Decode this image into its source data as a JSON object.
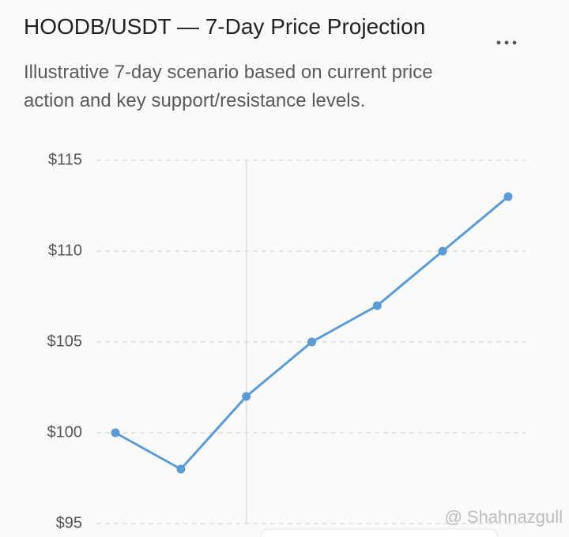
{
  "chart_data": {
    "type": "line",
    "title": "HOODB/USDT — 7-Day Price Projection",
    "subtitle": "Illustrative 7-day scenario based on current price action and key support/resistance levels.",
    "categories": [
      null,
      null,
      null,
      null,
      null,
      null,
      null
    ],
    "series": [
      {
        "name": null,
        "color": "#5b9bd5",
        "values": [
          100,
          98,
          102,
          105,
          107,
          110,
          113
        ]
      }
    ],
    "ylim": [
      95,
      115
    ],
    "yticks": [
      {
        "value": 95,
        "label": "$95"
      },
      {
        "value": 100,
        "label": "$100"
      },
      {
        "value": 105,
        "label": "$105"
      },
      {
        "value": 110,
        "label": "$110"
      },
      {
        "value": 115,
        "label": "$115"
      }
    ],
    "grid": true
  },
  "watermark": "@ Shahnazgull"
}
